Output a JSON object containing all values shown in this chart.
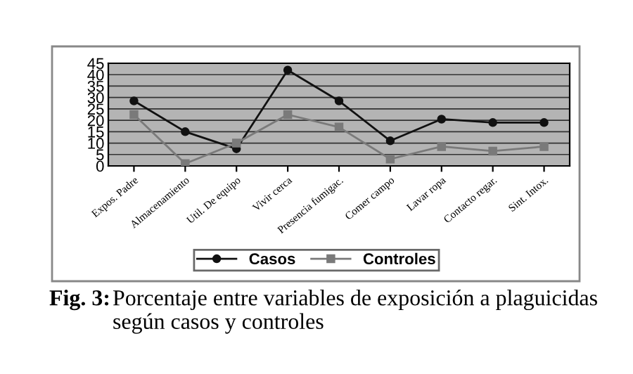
{
  "chart_data": {
    "type": "line",
    "categories": [
      "Expos. Padre",
      "Almacenamiento",
      "Util. De equipo",
      "Vivir cerca",
      "Presencia fumigac.",
      "Comer campo",
      "Lavar ropa",
      "Contacto regar.",
      "Sint. Intox."
    ],
    "series": [
      {
        "name": "Casos",
        "color": "#111111",
        "marker": "circle",
        "values": [
          28.5,
          15,
          7.5,
          42,
          28.5,
          11,
          20.5,
          19,
          19
        ]
      },
      {
        "name": "Controles",
        "color": "#7a7a7a",
        "marker": "square",
        "values": [
          22.5,
          1,
          10,
          22.5,
          17,
          3,
          8.5,
          6.5,
          8.5
        ]
      }
    ],
    "ylim": [
      0,
      45
    ],
    "yticks": [
      0,
      5,
      10,
      15,
      20,
      25,
      30,
      35,
      40,
      45
    ],
    "grid": "y",
    "legend": "bottom",
    "annotations": [
      "Fig. 3:",
      "Porcentaje entre variables de exposición a plaguicidas según casos y controles"
    ]
  }
}
